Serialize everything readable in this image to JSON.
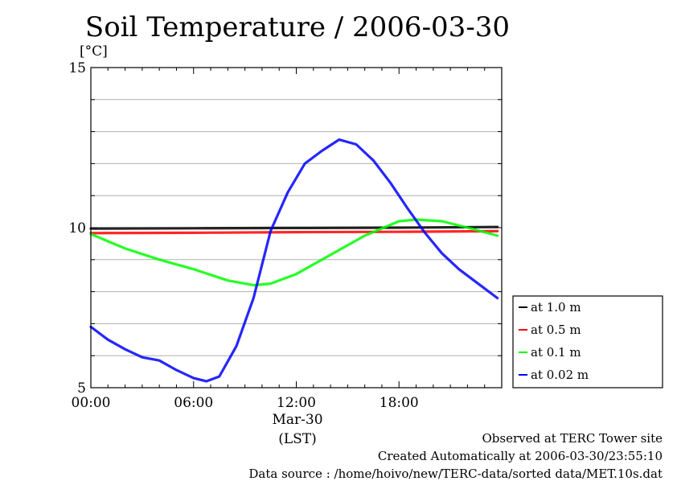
{
  "chart_data": {
    "type": "line",
    "title": "Soil Temperature / 2006-03-30",
    "ylabel": "[°C]",
    "xlabel": "(LST)",
    "x_date_label": "Mar-30",
    "ylim": [
      5,
      15
    ],
    "xlim": [
      "00:00",
      "24:00"
    ],
    "y_ticks": [
      "5",
      "10",
      "15"
    ],
    "x_ticks": [
      "00:00",
      "06:00",
      "12:00",
      "18:00"
    ],
    "grid": true,
    "legend_position": "right",
    "series": [
      {
        "name": "at 1.0 m",
        "color": "#000000",
        "x": [
          "00:00",
          "06:00",
          "12:00",
          "18:00",
          "23:45"
        ],
        "values": [
          9.97,
          9.98,
          9.99,
          10.0,
          10.02
        ]
      },
      {
        "name": "at 0.5 m",
        "color": "#ff0000",
        "x": [
          "00:00",
          "06:00",
          "12:00",
          "18:00",
          "23:45"
        ],
        "values": [
          9.83,
          9.84,
          9.86,
          9.87,
          9.89
        ]
      },
      {
        "name": "at 0.1 m",
        "color": "#00ff00",
        "x": [
          "00:00",
          "02:00",
          "04:00",
          "06:00",
          "08:00",
          "09:30",
          "10:30",
          "12:00",
          "14:00",
          "16:00",
          "18:00",
          "19:00",
          "20:30",
          "22:00",
          "23:45"
        ],
        "values": [
          9.8,
          9.35,
          9.0,
          8.7,
          8.35,
          8.2,
          8.25,
          8.55,
          9.15,
          9.75,
          10.2,
          10.25,
          10.2,
          10.0,
          9.75
        ]
      },
      {
        "name": "at 0.02 m",
        "color": "#0000ff",
        "x": [
          "00:00",
          "01:00",
          "02:00",
          "03:00",
          "04:00",
          "05:00",
          "06:00",
          "06:45",
          "07:30",
          "08:30",
          "09:30",
          "10:30",
          "11:30",
          "12:30",
          "13:30",
          "14:30",
          "15:30",
          "16:30",
          "17:30",
          "18:30",
          "19:30",
          "20:30",
          "21:30",
          "22:30",
          "23:45"
        ],
        "values": [
          6.9,
          6.5,
          6.2,
          5.95,
          5.85,
          5.55,
          5.3,
          5.2,
          5.35,
          6.3,
          7.8,
          9.9,
          11.1,
          12.0,
          12.4,
          12.75,
          12.6,
          12.1,
          11.4,
          10.6,
          9.85,
          9.2,
          8.7,
          8.3,
          7.8
        ]
      }
    ]
  },
  "footer": {
    "line1": "Observed at TERC Tower site",
    "line2": "Created Automatically at 2006-03-30/23:55:10",
    "line3": "Data source : /home/hoivo/new/TERC-data/sorted  data/MET.10s.dat"
  }
}
